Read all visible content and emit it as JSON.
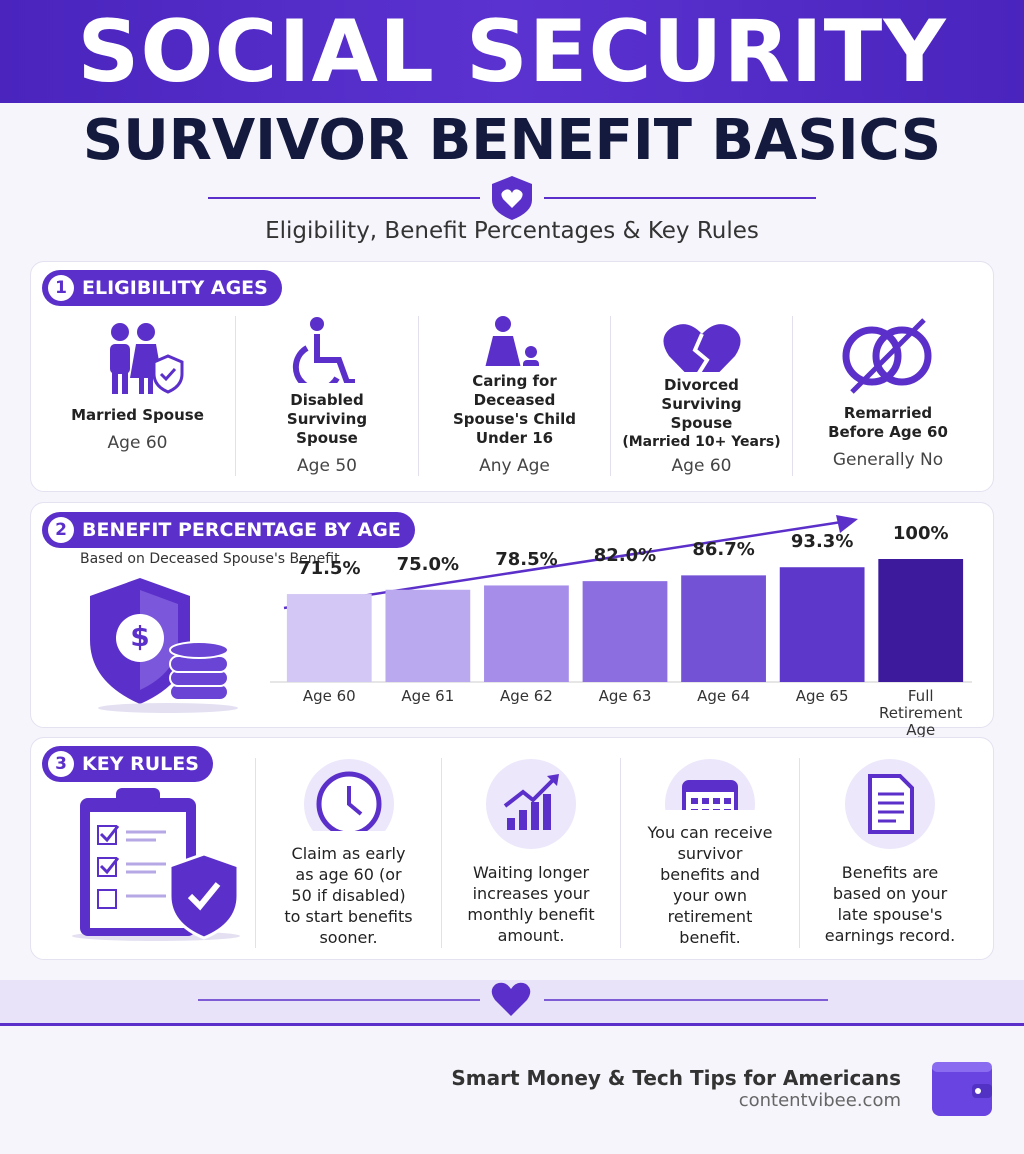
{
  "header": {
    "title": "SOCIAL SECURITY",
    "subtitle": "SURVIVOR BENEFIT BASICS",
    "tagline": "Eligibility, Benefit Percentages & Key Rules"
  },
  "sections": [
    {
      "number": "1",
      "title": "ELIGIBILITY AGES",
      "items": [
        {
          "label": "Married Spouse",
          "value": "Age 60"
        },
        {
          "label": "Disabled Surviving Spouse",
          "value": "Age 50"
        },
        {
          "label": "Caring for Deceased Spouse's Child Under 16",
          "value": "Any Age"
        },
        {
          "label": "Divorced Surviving Spouse",
          "note": "(Married 10+ Years)",
          "value": "Age 60"
        },
        {
          "label": "Remarried Before Age 60",
          "value": "Generally No"
        }
      ]
    },
    {
      "number": "2",
      "title": "BENEFIT PERCENTAGE BY AGE",
      "note": "Based on Deceased Spouse's Benefit",
      "chart_data": {
        "type": "bar",
        "categories": [
          "Age 60",
          "Age 61",
          "Age 62",
          "Age 63",
          "Age 64",
          "Age 65",
          "Full Retirement Age"
        ],
        "values": [
          71.5,
          75.0,
          78.5,
          82.0,
          86.7,
          93.3,
          100
        ],
        "value_labels": [
          "71.5%",
          "75.0%",
          "78.5%",
          "82.0%",
          "86.7%",
          "93.3%",
          "100%"
        ],
        "colors": [
          "#d3c8f5",
          "#bba9f0",
          "#a58de9",
          "#8c6ee0",
          "#7352d6",
          "#5c37c9",
          "#3d1a9c"
        ]
      }
    },
    {
      "number": "3",
      "title": "KEY RULES",
      "items": [
        {
          "text": "Claim as early as age 60 (or 50 if disabled) to start benefits sooner."
        },
        {
          "text": "Waiting longer increases your monthly benefit amount."
        },
        {
          "text": "You can receive survivor benefits and your own retirement benefit."
        },
        {
          "text": "Benefits are based on your late spouse's earnings record."
        }
      ]
    }
  ],
  "footer": {
    "tagline": "Smart Money & Tech Tips for Americans",
    "site": "contentvibee.com"
  }
}
